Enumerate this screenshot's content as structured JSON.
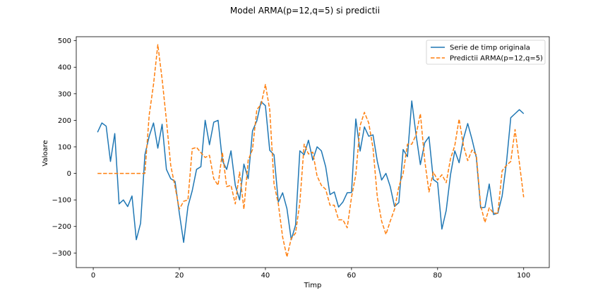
{
  "chart_data": {
    "type": "line",
    "title": "Model ARMA(p=12,q=5) si predictii",
    "xlabel": "Timp",
    "ylabel": "Valoare",
    "xlim": [
      -3.95,
      105.95
    ],
    "ylim": [
      -355,
      515
    ],
    "xticks": [
      0,
      20,
      40,
      60,
      80,
      100
    ],
    "yticks": [
      -300,
      -200,
      -100,
      0,
      100,
      200,
      300,
      400,
      500
    ],
    "grid": false,
    "legend_position": "top-right",
    "series": [
      {
        "name": "Serie de timp originala",
        "color": "#1f77b4",
        "style": "solid",
        "x": [
          1,
          2,
          3,
          4,
          5,
          6,
          7,
          8,
          9,
          10,
          11,
          12,
          13,
          14,
          15,
          16,
          17,
          18,
          19,
          20,
          21,
          22,
          23,
          24,
          25,
          26,
          27,
          28,
          29,
          30,
          31,
          32,
          33,
          34,
          35,
          36,
          37,
          38,
          39,
          40,
          41,
          42,
          43,
          44,
          45,
          46,
          47,
          48,
          49,
          50,
          51,
          52,
          53,
          54,
          55,
          56,
          57,
          58,
          59,
          60,
          61,
          62,
          63,
          64,
          65,
          66,
          67,
          68,
          69,
          70,
          71,
          72,
          73,
          74,
          75,
          76,
          77,
          78,
          79,
          80,
          81,
          82,
          83,
          84,
          85,
          86,
          87,
          88,
          89,
          90,
          91,
          92,
          93,
          94,
          95,
          96,
          97,
          98,
          99,
          100
        ],
        "values": [
          155,
          190,
          178,
          45,
          150,
          -115,
          -100,
          -125,
          -85,
          -250,
          -188,
          70,
          140,
          190,
          95,
          185,
          15,
          -20,
          -30,
          -150,
          -260,
          -125,
          -65,
          15,
          25,
          200,
          108,
          193,
          200,
          48,
          15,
          85,
          -45,
          -100,
          35,
          -20,
          160,
          198,
          270,
          255,
          87,
          70,
          -108,
          -73,
          -133,
          -250,
          -195,
          85,
          70,
          125,
          50,
          100,
          85,
          25,
          -80,
          -70,
          -127,
          -108,
          -73,
          -72,
          205,
          84,
          175,
          140,
          145,
          45,
          -25,
          0,
          -50,
          -125,
          -110,
          90,
          63,
          273,
          145,
          33,
          115,
          138,
          -23,
          -35,
          -210,
          -140,
          -5,
          85,
          40,
          130,
          188,
          128,
          60,
          -130,
          -128,
          -40,
          -155,
          -150,
          -85,
          40,
          210,
          225,
          240,
          225
        ]
      },
      {
        "name": "Predictii ARMA(p=12,q=5)",
        "color": "#ff7f0e",
        "style": "dashed",
        "x": [
          1,
          2,
          3,
          4,
          5,
          6,
          7,
          8,
          9,
          10,
          11,
          12,
          13,
          14,
          15,
          16,
          17,
          18,
          19,
          20,
          21,
          22,
          23,
          24,
          25,
          26,
          27,
          28,
          29,
          30,
          31,
          32,
          33,
          34,
          35,
          36,
          37,
          38,
          39,
          40,
          41,
          42,
          43,
          44,
          45,
          46,
          47,
          48,
          49,
          50,
          51,
          52,
          53,
          54,
          55,
          56,
          57,
          58,
          59,
          60,
          61,
          62,
          63,
          64,
          65,
          66,
          67,
          68,
          69,
          70,
          71,
          72,
          73,
          74,
          75,
          76,
          77,
          78,
          79,
          80,
          81,
          82,
          83,
          84,
          85,
          86,
          87,
          88,
          89,
          90,
          91,
          92,
          93,
          94,
          95,
          96,
          97,
          98,
          99,
          100
        ],
        "values": [
          0,
          0,
          0,
          0,
          0,
          0,
          0,
          0,
          0,
          0,
          0,
          0,
          220,
          335,
          485,
          355,
          200,
          30,
          -50,
          -135,
          -105,
          -100,
          93,
          98,
          78,
          60,
          68,
          -20,
          -45,
          80,
          -50,
          -45,
          -115,
          5,
          -135,
          50,
          90,
          240,
          260,
          335,
          240,
          -40,
          -115,
          -240,
          -315,
          -245,
          -225,
          -110,
          110,
          73,
          80,
          -10,
          -45,
          -60,
          -120,
          -120,
          -175,
          -175,
          -205,
          -90,
          -5,
          180,
          230,
          190,
          95,
          -90,
          -180,
          -230,
          -180,
          -135,
          -50,
          0,
          110,
          110,
          145,
          225,
          50,
          -70,
          5,
          -25,
          -5,
          -35,
          55,
          105,
          205,
          105,
          48,
          88,
          70,
          -120,
          -185,
          -130,
          -150,
          -150,
          10,
          30,
          45,
          165,
          40,
          -90
        ]
      }
    ]
  }
}
